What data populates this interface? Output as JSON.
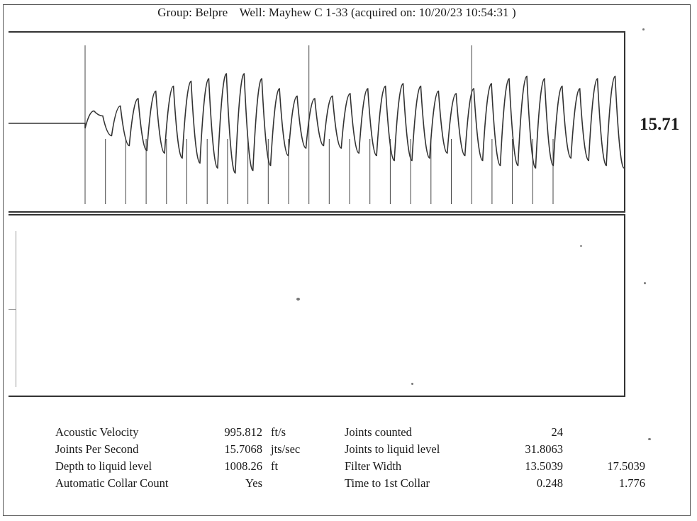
{
  "header": {
    "group": "Group: Belpre",
    "well": "Well: Mayhew  C 1-33 (acquired on: 10/20/23 10:54:31 )"
  },
  "joint_rate_display": "15.71",
  "chart_data": {
    "type": "line",
    "title": "",
    "xlabel": "",
    "ylabel": "",
    "grid": false,
    "series": [
      {
        "values": [
          0,
          0,
          0,
          0,
          0,
          0,
          0,
          0,
          -4,
          10,
          6,
          -10,
          14,
          -18,
          20,
          -22,
          26,
          -24,
          30,
          -28,
          34,
          -32,
          36,
          -36,
          40,
          -40,
          40,
          -38,
          36,
          -34,
          28,
          -26,
          22,
          -20,
          20,
          -18,
          22,
          -20,
          24,
          -24,
          28,
          -26,
          30,
          -30,
          32,
          -30,
          30,
          -28,
          26,
          -24,
          24,
          -26,
          28,
          -30,
          32,
          -34,
          36,
          -34,
          38,
          -36,
          36,
          -34,
          30,
          -28,
          28,
          -30,
          36,
          -34,
          38,
          -36
        ]
      }
    ],
    "collar_markers_count": 24,
    "major_markers_count": 3
  },
  "results": {
    "rows": [
      {
        "label": "Acoustic Velocity",
        "value": "995.812",
        "unit": "ft/s",
        "label2": "Joints counted",
        "value2": "24",
        "value3": ""
      },
      {
        "label": "Joints Per Second",
        "value": "15.7068",
        "unit": "jts/sec",
        "label2": "Joints to liquid level",
        "value2": "31.8063",
        "value3": ""
      },
      {
        "label": "Depth to liquid level",
        "value": "1008.26",
        "unit": "ft",
        "label2": "Filter Width",
        "value2": "13.5039",
        "value3": "17.5039"
      },
      {
        "label": "Automatic Collar Count",
        "value": "Yes",
        "unit": "",
        "label2": "Time to 1st Collar",
        "value2": "0.248",
        "value3": "1.776"
      }
    ]
  }
}
